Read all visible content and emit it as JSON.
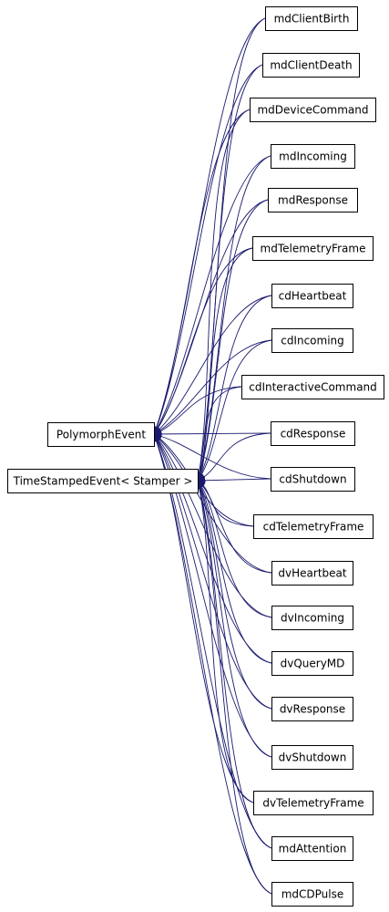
{
  "diagram": {
    "type": "class inheritance graph",
    "edge_color": "#1a1a6e",
    "arrow_style": "filled-triangle",
    "bases": [
      {
        "id": "polymorph",
        "label": "PolymorphEvent"
      },
      {
        "id": "timestamped",
        "label": "TimeStampedEvent< Stamper >"
      }
    ],
    "derived": [
      {
        "id": "mdClientBirth",
        "label": "mdClientBirth"
      },
      {
        "id": "mdClientDeath",
        "label": "mdClientDeath"
      },
      {
        "id": "mdDeviceCommand",
        "label": "mdDeviceCommand"
      },
      {
        "id": "mdIncoming",
        "label": "mdIncoming"
      },
      {
        "id": "mdResponse",
        "label": "mdResponse"
      },
      {
        "id": "mdTelemetryFrame",
        "label": "mdTelemetryFrame"
      },
      {
        "id": "cdHeartbeat",
        "label": "cdHeartbeat"
      },
      {
        "id": "cdIncoming",
        "label": "cdIncoming"
      },
      {
        "id": "cdInteractiveCommand",
        "label": "cdInteractiveCommand"
      },
      {
        "id": "cdResponse",
        "label": "cdResponse"
      },
      {
        "id": "cdShutdown",
        "label": "cdShutdown"
      },
      {
        "id": "cdTelemetryFrame",
        "label": "cdTelemetryFrame"
      },
      {
        "id": "dvHeartbeat",
        "label": "dvHeartbeat"
      },
      {
        "id": "dvIncoming",
        "label": "dvIncoming"
      },
      {
        "id": "dvQueryMD",
        "label": "dvQueryMD"
      },
      {
        "id": "dvResponse",
        "label": "dvResponse"
      },
      {
        "id": "dvShutdown",
        "label": "dvShutdown"
      },
      {
        "id": "dvTelemetryFrame",
        "label": "dvTelemetryFrame"
      },
      {
        "id": "mdAttention",
        "label": "mdAttention"
      },
      {
        "id": "mdCDPulse",
        "label": "mdCDPulse"
      }
    ]
  }
}
